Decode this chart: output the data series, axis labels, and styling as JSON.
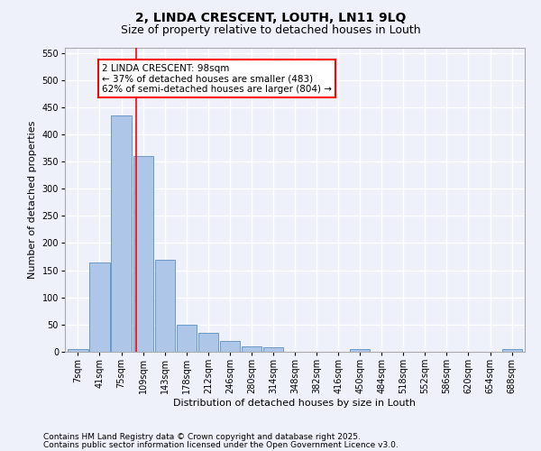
{
  "title1": "2, LINDA CRESCENT, LOUTH, LN11 9LQ",
  "title2": "Size of property relative to detached houses in Louth",
  "xlabel": "Distribution of detached houses by size in Louth",
  "ylabel": "Number of detached properties",
  "categories": [
    "7sqm",
    "41sqm",
    "75sqm",
    "109sqm",
    "143sqm",
    "178sqm",
    "212sqm",
    "246sqm",
    "280sqm",
    "314sqm",
    "348sqm",
    "382sqm",
    "416sqm",
    "450sqm",
    "484sqm",
    "518sqm",
    "552sqm",
    "586sqm",
    "620sqm",
    "654sqm",
    "688sqm"
  ],
  "values": [
    5,
    165,
    435,
    360,
    170,
    50,
    35,
    20,
    10,
    8,
    0,
    0,
    0,
    5,
    0,
    0,
    0,
    0,
    0,
    0,
    5
  ],
  "bar_color": "#aec6e8",
  "bar_edge_color": "#5a8fc0",
  "vline_color": "red",
  "annotation_text": "2 LINDA CRESCENT: 98sqm\n← 37% of detached houses are smaller (483)\n62% of semi-detached houses are larger (804) →",
  "annotation_box_color": "white",
  "annotation_box_edge": "red",
  "ylim": [
    0,
    560
  ],
  "yticks": [
    0,
    50,
    100,
    150,
    200,
    250,
    300,
    350,
    400,
    450,
    500,
    550
  ],
  "footnote1": "Contains HM Land Registry data © Crown copyright and database right 2025.",
  "footnote2": "Contains public sector information licensed under the Open Government Licence v3.0.",
  "bg_color": "#eef1fa",
  "plot_bg_color": "#eef1fa",
  "grid_color": "#ffffff",
  "title1_fontsize": 10,
  "title2_fontsize": 9,
  "annotation_fontsize": 7.5,
  "tick_fontsize": 7,
  "axis_label_fontsize": 8,
  "footnote_fontsize": 6.5
}
